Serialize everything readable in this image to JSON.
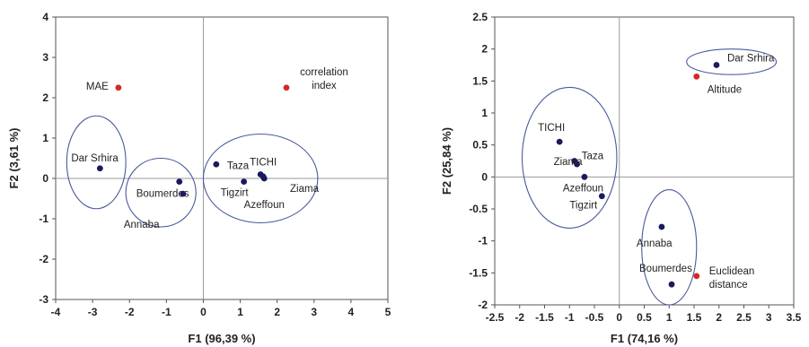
{
  "chart_data": [
    {
      "type": "scatter",
      "xlabel": "F1 (96,39 %)",
      "ylabel": "F2 (3,61 %)",
      "xlim": [
        -4,
        5
      ],
      "ylim": [
        -3,
        4
      ],
      "xticks": [
        "-4",
        "-3",
        "-2",
        "-1",
        "0",
        "1",
        "2",
        "3",
        "4",
        "5"
      ],
      "yticks": [
        "-3",
        "-2",
        "-1",
        "0",
        "1",
        "2",
        "3",
        "4"
      ],
      "grid": false,
      "colors": {
        "observation": "#1a1a5e",
        "variable": "#d62728",
        "ellipse": "#4a5a9a"
      },
      "points": [
        {
          "label": "Dar Srhira",
          "x": -2.8,
          "y": 0.25,
          "kind": "observation"
        },
        {
          "label": "Boumerdes",
          "x": -0.65,
          "y": -0.08,
          "kind": "observation"
        },
        {
          "label": "Annaba",
          "x": -0.55,
          "y": -0.38,
          "kind": "observation"
        },
        {
          "label": "Taza",
          "x": 0.35,
          "y": 0.35,
          "kind": "observation"
        },
        {
          "label": "Tigzirt",
          "x": 1.1,
          "y": -0.08,
          "kind": "observation"
        },
        {
          "label": "TICHI",
          "x": 1.55,
          "y": 0.1,
          "kind": "observation"
        },
        {
          "label": "Ziama",
          "x": 1.62,
          "y": 0.05,
          "kind": "observation"
        },
        {
          "label": "Azeffoun",
          "x": 1.65,
          "y": 0.0,
          "kind": "observation"
        },
        {
          "label": "MAE",
          "x": -2.3,
          "y": 2.25,
          "kind": "variable"
        },
        {
          "label": "correlation index",
          "x": 2.25,
          "y": 2.25,
          "kind": "variable"
        }
      ],
      "ellipses": [
        {
          "cx": -2.9,
          "cy": 0.4,
          "rx": 0.8,
          "ry": 1.15
        },
        {
          "cx": -1.15,
          "cy": -0.35,
          "rx": 0.95,
          "ry": 0.85
        },
        {
          "cx": 1.55,
          "cy": 0.0,
          "rx": 1.55,
          "ry": 1.1
        }
      ]
    },
    {
      "type": "scatter",
      "xlabel": "F1 (74,16 %)",
      "ylabel": "F2 (25,84 %)",
      "xlim": [
        -2.5,
        3.5
      ],
      "ylim": [
        -2,
        2.5
      ],
      "xticks": [
        "-2.5",
        "-2",
        "-1.5",
        "-1",
        "-0.5",
        "0",
        "0.5",
        "1",
        "1.5",
        "2",
        "2.5",
        "3",
        "3.5"
      ],
      "yticks": [
        "-2",
        "-1.5",
        "-1",
        "-0.5",
        "0",
        "0.5",
        "1",
        "1.5",
        "2",
        "2.5"
      ],
      "grid": false,
      "colors": {
        "observation": "#1a1a5e",
        "variable": "#d62728",
        "ellipse": "#4a5a9a"
      },
      "points": [
        {
          "label": "Dar Srhira",
          "x": 1.95,
          "y": 1.75,
          "kind": "observation"
        },
        {
          "label": "TICHI",
          "x": -1.2,
          "y": 0.55,
          "kind": "observation"
        },
        {
          "label": "Taza",
          "x": -0.9,
          "y": 0.25,
          "kind": "observation"
        },
        {
          "label": "Ziama",
          "x": -0.85,
          "y": 0.2,
          "kind": "observation"
        },
        {
          "label": "Azeffoun",
          "x": -0.7,
          "y": 0.0,
          "kind": "observation"
        },
        {
          "label": "Tigzirt",
          "x": -0.35,
          "y": -0.3,
          "kind": "observation"
        },
        {
          "label": "Annaba",
          "x": 0.85,
          "y": -0.78,
          "kind": "observation"
        },
        {
          "label": "Boumerdes",
          "x": 1.05,
          "y": -1.68,
          "kind": "observation"
        },
        {
          "label": "Altitude",
          "x": 1.55,
          "y": 1.57,
          "kind": "variable"
        },
        {
          "label": "Euclidean distance",
          "x": 1.55,
          "y": -1.55,
          "kind": "variable"
        }
      ],
      "ellipses": [
        {
          "cx": -1.0,
          "cy": 0.3,
          "rx": 0.95,
          "ry": 1.1
        },
        {
          "cx": 2.25,
          "cy": 1.8,
          "rx": 0.9,
          "ry": 0.2
        },
        {
          "cx": 1.0,
          "cy": -1.1,
          "rx": 0.55,
          "ry": 0.9
        }
      ]
    }
  ]
}
